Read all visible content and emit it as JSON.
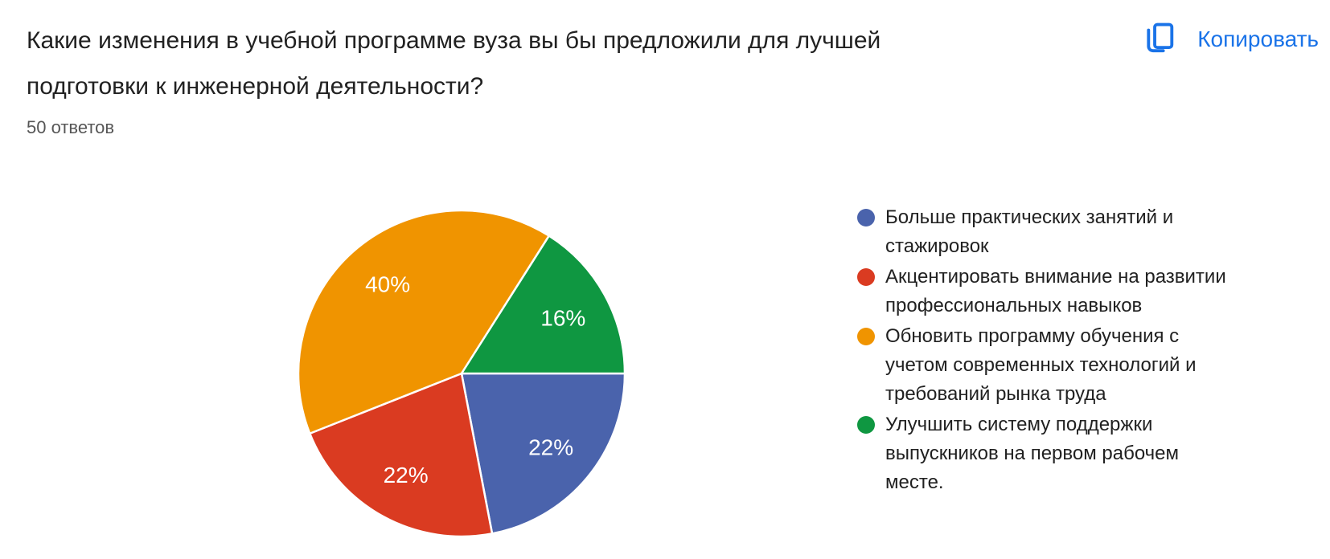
{
  "header": {
    "question": "Какие изменения в учебной программе вуза вы бы предложили для лучшей подготовки к инженерной деятельности?",
    "responses_count": "50 ответов",
    "copy_button": {
      "label": "Копировать",
      "icon": "copy-icon",
      "color": "#1a73e8"
    }
  },
  "chart_data": {
    "type": "pie",
    "title": "Какие изменения в учебной программе вуза вы бы предложили для лучшей подготовки к инженерной деятельности?",
    "subtitle": "50 ответов",
    "total_responses": 50,
    "start_angle_deg": 90,
    "direction": "clockwise",
    "legend_position": "right",
    "slices": [
      {
        "label": "Больше практических занятий и стажировок",
        "percent": 22,
        "display_label": "22%",
        "color": "#4A63AC"
      },
      {
        "label": "Акцентировать внимание на развитии профессиональных навыков",
        "percent": 22,
        "display_label": "22%",
        "color": "#DA3B21"
      },
      {
        "label": "Обновить программу обучения с учетом современных технологий и требований рынка труда",
        "percent": 40,
        "display_label": "40%",
        "color": "#F09400"
      },
      {
        "label": "Улучшить систему поддержки выпускников на первом рабочем месте.",
        "percent": 16,
        "display_label": "16%",
        "color": "#0F9741"
      }
    ]
  }
}
